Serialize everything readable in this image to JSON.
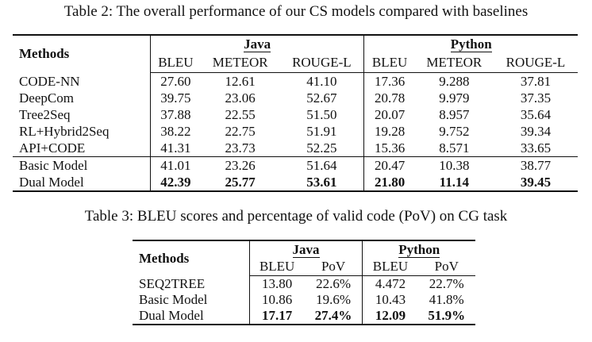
{
  "table2": {
    "caption": "Table 2: The overall performance of our CS models compared with baselines",
    "methods_header": "Methods",
    "group_java": "Java",
    "group_python": "Python",
    "subheaders": [
      "BLEU",
      "METEOR",
      "ROUGE-L",
      "BLEU",
      "METEOR",
      "ROUGE-L"
    ],
    "rows": [
      {
        "method": "CODE-NN",
        "values": [
          "27.60",
          "12.61",
          "41.10",
          "17.36",
          "9.288",
          "37.81"
        ]
      },
      {
        "method": "DeepCom",
        "values": [
          "39.75",
          "23.06",
          "52.67",
          "20.78",
          "9.979",
          "37.35"
        ]
      },
      {
        "method": "Tree2Seq",
        "values": [
          "37.88",
          "22.55",
          "51.50",
          "20.07",
          "8.957",
          "35.64"
        ]
      },
      {
        "method": "RL+Hybrid2Seq",
        "values": [
          "38.22",
          "22.75",
          "51.91",
          "19.28",
          "9.752",
          "39.34"
        ]
      },
      {
        "method": "API+CODE",
        "values": [
          "41.31",
          "23.73",
          "52.25",
          "15.36",
          "8.571",
          "33.65"
        ]
      },
      {
        "method": "Basic Model",
        "values": [
          "41.01",
          "23.26",
          "51.64",
          "20.47",
          "10.38",
          "38.77"
        ]
      },
      {
        "method": "Dual Model",
        "values": [
          "42.39",
          "25.77",
          "53.61",
          "21.80",
          "11.14",
          "39.45"
        ]
      }
    ]
  },
  "table3": {
    "caption": "Table 3: BLEU scores and percentage of valid code (PoV) on CG task",
    "methods_header": "Methods",
    "group_java": "Java",
    "group_python": "Python",
    "subheaders": [
      "BLEU",
      "PoV",
      "BLEU",
      "PoV"
    ],
    "rows": [
      {
        "method": "SEQ2TREE",
        "values": [
          "13.80",
          "22.6%",
          "4.472",
          "22.7%"
        ]
      },
      {
        "method": "Basic Model",
        "values": [
          "10.86",
          "19.6%",
          "10.43",
          "41.8%"
        ]
      },
      {
        "method": "Dual Model",
        "values": [
          "17.17",
          "27.4%",
          "12.09",
          "51.9%"
        ]
      }
    ]
  }
}
